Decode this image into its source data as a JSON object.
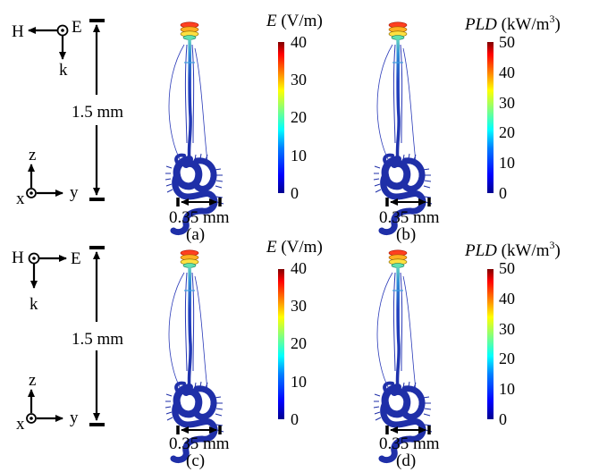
{
  "panels": [
    {
      "id": "a",
      "caption": "(a)",
      "colorbar": {
        "symbol": "E",
        "unit": "(V/m)",
        "unit_sup": "",
        "unit_tail": "",
        "ticks": [
          "40",
          "30",
          "20",
          "10",
          "0"
        ]
      }
    },
    {
      "id": "b",
      "caption": "(b)",
      "colorbar": {
        "symbol": "PLD",
        "unit": "(kW/m",
        "unit_sup": "3",
        "unit_tail": ")",
        "ticks": [
          "50",
          "40",
          "30",
          "20",
          "10",
          "0"
        ]
      }
    },
    {
      "id": "c",
      "caption": "(c)",
      "colorbar": {
        "symbol": "E",
        "unit": "(V/m)",
        "unit_sup": "",
        "unit_tail": "",
        "ticks": [
          "40",
          "30",
          "20",
          "10",
          "0"
        ]
      }
    },
    {
      "id": "d",
      "caption": "(d)",
      "colorbar": {
        "symbol": "PLD",
        "unit": "(kW/m",
        "unit_sup": "3",
        "unit_tail": ")",
        "ticks": [
          "50",
          "40",
          "30",
          "20",
          "10",
          "0"
        ]
      }
    }
  ],
  "scale": {
    "length_label": "1.5 mm",
    "width_label": "0.35 mm"
  },
  "polarization_top": {
    "h": "H",
    "e": "E",
    "k": "k",
    "h_direction": "left",
    "e_direction": "into-page"
  },
  "polarization_bottom": {
    "h": "H",
    "e": "E",
    "k": "k",
    "h_direction": "out-of-page",
    "e_direction": "right"
  },
  "axes_labels": {
    "x": "x",
    "y": "y",
    "z": "z"
  },
  "colors": {
    "colormap": [
      "#00008f",
      "#0000ff",
      "#0080ff",
      "#00ffff",
      "#80ff80",
      "#ffff00",
      "#ff8000",
      "#ff0000",
      "#800000"
    ],
    "body": "#1f2fa8",
    "body_edge": "#0a1470",
    "ink": "#000000"
  }
}
